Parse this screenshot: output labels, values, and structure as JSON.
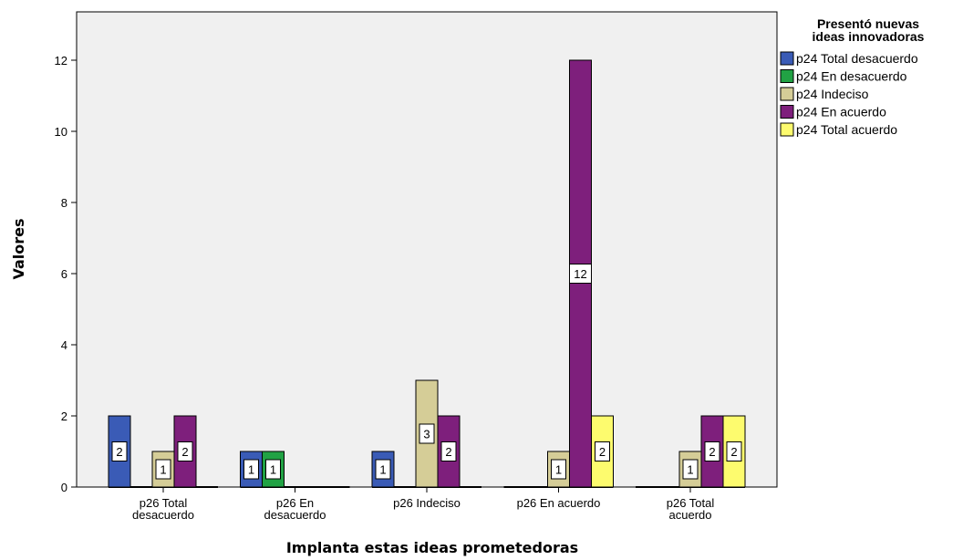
{
  "chart_data": {
    "type": "bar",
    "title": "",
    "xlabel": "Implanta estas ideas prometedoras",
    "ylabel": "Valores",
    "ylim": [
      0,
      13
    ],
    "yticks": [
      0,
      2,
      4,
      6,
      8,
      10,
      12
    ],
    "grid": false,
    "legend_title": [
      "Presentó nuevas",
      "ideas innovadoras"
    ],
    "legend_position": "right",
    "categories": [
      [
        "p26 Total",
        "desacuerdo"
      ],
      [
        "p26 En",
        "desacuerdo"
      ],
      [
        "p26 Indeciso"
      ],
      [
        "p26 En acuerdo"
      ],
      [
        "p26 Total",
        "acuerdo"
      ]
    ],
    "series": [
      {
        "name": "p24 Total desacuerdo",
        "color": "#3a5bb6",
        "values": [
          2,
          1,
          1,
          null,
          null
        ]
      },
      {
        "name": "p24 En desacuerdo",
        "color": "#21a244",
        "values": [
          null,
          1,
          null,
          null,
          null
        ]
      },
      {
        "name": "p24 Indeciso",
        "color": "#d5cd97",
        "values": [
          1,
          null,
          3,
          1,
          1
        ]
      },
      {
        "name": "p24 En acuerdo",
        "color": "#7e1f7c",
        "values": [
          2,
          null,
          2,
          12,
          2
        ]
      },
      {
        "name": "p24 Total acuerdo",
        "color": "#fdfb6e",
        "values": [
          null,
          null,
          null,
          2,
          2
        ]
      }
    ]
  }
}
